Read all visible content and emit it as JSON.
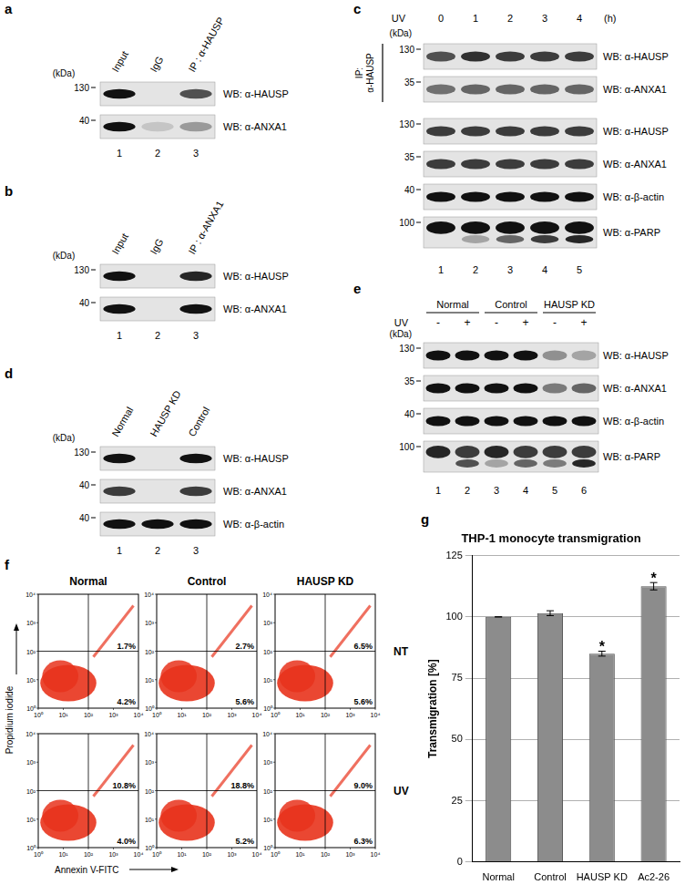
{
  "figure": {
    "a": {
      "label": "a",
      "kda_title": "(kDa)",
      "lanes": [
        "Input",
        "IgG",
        "IP : α-HAUSP"
      ],
      "lane_numbers": [
        1,
        2,
        3
      ],
      "rows": [
        {
          "kda": 130,
          "probe": "WB: α-HAUSP",
          "bands": [
            1,
            0,
            0.7
          ]
        },
        {
          "kda": 40,
          "probe": "WB: α-ANXA1",
          "bands": [
            1,
            0.15,
            0.35
          ]
        }
      ]
    },
    "b": {
      "label": "b",
      "kda_title": "(kDa)",
      "lanes": [
        "Input",
        "IgG",
        "IP : α-ANXA1"
      ],
      "lane_numbers": [
        1,
        2,
        3
      ],
      "rows": [
        {
          "kda": 130,
          "probe": "WB: α-HAUSP",
          "bands": [
            1,
            0,
            0.9
          ]
        },
        {
          "kda": 40,
          "probe": "WB: α-ANXA1",
          "bands": [
            1,
            0,
            1
          ]
        }
      ]
    },
    "c": {
      "label": "c",
      "treatment": "UV",
      "times": [
        0,
        1,
        2,
        3,
        4
      ],
      "time_unit": "(h)",
      "kda_title": "(kDa)",
      "ip_label": "IP:\nα-HAUSP",
      "lane_numbers": [
        1,
        2,
        3,
        4,
        5
      ],
      "rows": [
        {
          "kda": 130,
          "probe": "WB: α-HAUSP",
          "ip": true,
          "bands": [
            0.7,
            0.85,
            0.8,
            0.8,
            0.8
          ]
        },
        {
          "kda": 35,
          "probe": "WB: α-ANXA1",
          "ip": true,
          "bands": [
            0.55,
            0.6,
            0.6,
            0.6,
            0.6
          ]
        },
        {
          "kda": 130,
          "probe": "WB: α-HAUSP",
          "bands": [
            0.8,
            0.8,
            0.8,
            0.8,
            0.8
          ]
        },
        {
          "kda": 35,
          "probe": "WB: α-ANXA1",
          "bands": [
            0.8,
            0.8,
            0.8,
            0.8,
            0.8
          ]
        },
        {
          "kda": 40,
          "probe": "WB: α-β-actin",
          "bands": [
            1,
            1,
            1,
            1,
            1
          ]
        },
        {
          "kda": 100,
          "probe": "WB: α-PARP",
          "bands": [
            1,
            1,
            1,
            1,
            1
          ],
          "cleaved_bands": [
            0,
            0.3,
            0.6,
            0.8,
            0.9
          ]
        }
      ]
    },
    "d": {
      "label": "d",
      "kda_title": "(kDa)",
      "lanes": [
        "Normal",
        "HAUSP KD",
        "Control"
      ],
      "lane_numbers": [
        1,
        2,
        3
      ],
      "rows": [
        {
          "kda": 130,
          "probe": "WB: α-HAUSP",
          "bands": [
            1,
            0,
            1
          ]
        },
        {
          "kda": 40,
          "probe": "WB: α-ANXA1",
          "bands": [
            0.8,
            0,
            0.8
          ]
        },
        {
          "kda": 40,
          "probe": "WB: α-β-actin",
          "bands": [
            1,
            1,
            1
          ]
        }
      ]
    },
    "e": {
      "label": "e",
      "kda_title": "(kDa)",
      "groups": [
        "Normal",
        "Control",
        "HAUSP KD"
      ],
      "treatment": "UV",
      "treatment_marks": [
        "-",
        "+",
        "-",
        "+",
        "-",
        "+"
      ],
      "lane_numbers": [
        1,
        2,
        3,
        4,
        5,
        6
      ],
      "rows": [
        {
          "kda": 130,
          "probe": "WB: α-HAUSP",
          "bands": [
            1,
            1,
            1,
            1,
            0.4,
            0.3
          ]
        },
        {
          "kda": 35,
          "probe": "WB: α-ANXA1",
          "bands": [
            1,
            1,
            1,
            1,
            0.5,
            0.6
          ]
        },
        {
          "kda": 40,
          "probe": "WB: α-β-actin",
          "bands": [
            1,
            1,
            1,
            1,
            1,
            1
          ]
        },
        {
          "kda": 100,
          "probe": "WB: α-PARP",
          "bands": [
            0.9,
            0.8,
            0.9,
            0.8,
            0.8,
            0.8
          ],
          "cleaved_bands": [
            0,
            0.7,
            0.3,
            0.6,
            0.5,
            0.9
          ]
        }
      ]
    },
    "f": {
      "label": "f",
      "columns": [
        "Normal",
        "Control",
        "HAUSP KD"
      ],
      "rows": [
        "NT",
        "UV"
      ],
      "x_title": "Annexin V-FITC",
      "y_title": "Propidium iodide",
      "ticks": [
        {
          "value": 1,
          "label": "10⁰"
        },
        {
          "value": 10,
          "label": "10¹"
        },
        {
          "value": 100,
          "label": "10²"
        },
        {
          "value": 1000,
          "label": "10³"
        },
        {
          "value": 10000,
          "label": "10⁴"
        }
      ],
      "gate_x": 100,
      "gate_y": 100,
      "plots": [
        [
          {
            "upper_right": {
              "value": 1.7,
              "label": "1.7%"
            },
            "lower_right": {
              "value": 4.2,
              "label": "4.2%"
            }
          },
          {
            "upper_right": {
              "value": 2.7,
              "label": "2.7%"
            },
            "lower_right": {
              "value": 5.6,
              "label": "5.6%"
            }
          },
          {
            "upper_right": {
              "value": 6.5,
              "label": "6.5%"
            },
            "lower_right": {
              "value": 5.6,
              "label": "5.6%"
            }
          }
        ],
        [
          {
            "upper_right": {
              "value": 10.8,
              "label": "10.8%"
            },
            "lower_right": {
              "value": 4.0,
              "label": "4.0%"
            }
          },
          {
            "upper_right": {
              "value": 18.8,
              "label": "18.8%"
            },
            "lower_right": {
              "value": 5.2,
              "label": "5.2%"
            }
          },
          {
            "upper_right": {
              "value": 9.0,
              "label": "9.0%"
            },
            "lower_right": {
              "value": 6.3,
              "label": "6.3%"
            }
          }
        ]
      ]
    },
    "g": {
      "label": "g"
    }
  },
  "chart_data": {
    "type": "bar",
    "title": "THP-1 monocyte transmigration",
    "y_label": "Transmigration [%]",
    "categories": [
      "Normal",
      "Control",
      "HAUSP KD",
      "Ac2-26"
    ],
    "values": [
      100,
      101.5,
      85,
      112.5
    ],
    "errors": [
      0,
      1,
      1,
      1.5
    ],
    "color": "#8c8c8c",
    "ylim": [
      0,
      125
    ],
    "yticks": [
      0,
      25,
      50,
      75,
      100,
      125
    ],
    "grid": true,
    "annotations": [
      {
        "category": "HAUSP KD",
        "text": "*"
      },
      {
        "category": "Ac2-26",
        "text": "*"
      }
    ]
  }
}
